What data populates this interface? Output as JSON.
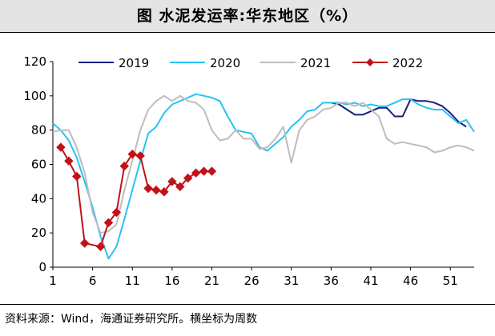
{
  "figure_title": "图    水泥发运率:华东地区（%）",
  "source": "资料来源：Wind，海通证券研究所。横坐标为周数",
  "chart_data": {
    "type": "line",
    "title": "水泥发运率:华东地区（%）",
    "xlabel": "",
    "ylabel": "",
    "xlim": [
      1,
      54
    ],
    "ylim": [
      0,
      120
    ],
    "x_ticks": [
      1,
      6,
      11,
      16,
      21,
      26,
      31,
      36,
      41,
      46,
      51
    ],
    "y_ticks": [
      0,
      20,
      40,
      60,
      80,
      100,
      120
    ],
    "legend_position": "top",
    "series": [
      {
        "name": "2019",
        "color": "#1c1c80",
        "markers": false,
        "points": [
          [
            36,
            96
          ],
          [
            37,
            95
          ],
          [
            38,
            92
          ],
          [
            39,
            89
          ],
          [
            40,
            89
          ],
          [
            41,
            91
          ],
          [
            42,
            93
          ],
          [
            43,
            93
          ],
          [
            44,
            88
          ],
          [
            45,
            88
          ],
          [
            46,
            98
          ],
          [
            47,
            97
          ],
          [
            48,
            97
          ],
          [
            49,
            96
          ],
          [
            50,
            94
          ],
          [
            51,
            90
          ],
          [
            52,
            85
          ],
          [
            53,
            82
          ]
        ]
      },
      {
        "name": "2020",
        "color": "#24c4f4",
        "markers": false,
        "points": [
          [
            1,
            84
          ],
          [
            2,
            80
          ],
          [
            3,
            74
          ],
          [
            4,
            64
          ],
          [
            5,
            50
          ],
          [
            6,
            35
          ],
          [
            7,
            18
          ],
          [
            8,
            5
          ],
          [
            9,
            12
          ],
          [
            10,
            28
          ],
          [
            11,
            45
          ],
          [
            12,
            62
          ],
          [
            13,
            78
          ],
          [
            14,
            82
          ],
          [
            15,
            90
          ],
          [
            16,
            95
          ],
          [
            17,
            97
          ],
          [
            18,
            99
          ],
          [
            19,
            101
          ],
          [
            20,
            100
          ],
          [
            21,
            99
          ],
          [
            22,
            97
          ],
          [
            23,
            88
          ],
          [
            24,
            80
          ],
          [
            25,
            79
          ],
          [
            26,
            78
          ],
          [
            27,
            70
          ],
          [
            28,
            68
          ],
          [
            29,
            72
          ],
          [
            30,
            76
          ],
          [
            31,
            82
          ],
          [
            32,
            86
          ],
          [
            33,
            91
          ],
          [
            34,
            92
          ],
          [
            35,
            96
          ],
          [
            36,
            96
          ],
          [
            37,
            96
          ],
          [
            38,
            95
          ],
          [
            39,
            96
          ],
          [
            40,
            94
          ],
          [
            41,
            95
          ],
          [
            42,
            94
          ],
          [
            43,
            94
          ],
          [
            44,
            96
          ],
          [
            45,
            98
          ],
          [
            46,
            98
          ],
          [
            47,
            95
          ],
          [
            48,
            93
          ],
          [
            49,
            92
          ],
          [
            50,
            92
          ],
          [
            51,
            88
          ],
          [
            52,
            84
          ],
          [
            53,
            86
          ],
          [
            54,
            79
          ]
        ]
      },
      {
        "name": "2021",
        "color": "#bdbdbd",
        "markers": false,
        "points": [
          [
            1,
            79
          ],
          [
            2,
            80
          ],
          [
            3,
            80
          ],
          [
            4,
            70
          ],
          [
            5,
            55
          ],
          [
            6,
            32
          ],
          [
            7,
            20
          ],
          [
            8,
            21
          ],
          [
            9,
            25
          ],
          [
            10,
            45
          ],
          [
            11,
            62
          ],
          [
            12,
            80
          ],
          [
            13,
            92
          ],
          [
            14,
            97
          ],
          [
            15,
            100
          ],
          [
            16,
            97
          ],
          [
            17,
            100
          ],
          [
            18,
            97
          ],
          [
            19,
            96
          ],
          [
            20,
            92
          ],
          [
            21,
            80
          ],
          [
            22,
            74
          ],
          [
            23,
            75
          ],
          [
            24,
            80
          ],
          [
            25,
            75
          ],
          [
            26,
            75
          ],
          [
            27,
            69
          ],
          [
            28,
            70
          ],
          [
            29,
            75
          ],
          [
            30,
            82
          ],
          [
            31,
            61
          ],
          [
            32,
            80
          ],
          [
            33,
            86
          ],
          [
            34,
            88
          ],
          [
            35,
            92
          ],
          [
            36,
            93
          ],
          [
            37,
            96
          ],
          [
            38,
            96
          ],
          [
            39,
            94
          ],
          [
            40,
            96
          ],
          [
            41,
            92
          ],
          [
            42,
            88
          ],
          [
            43,
            75
          ],
          [
            44,
            72
          ],
          [
            45,
            73
          ],
          [
            46,
            72
          ],
          [
            47,
            71
          ],
          [
            48,
            70
          ],
          [
            49,
            67
          ],
          [
            50,
            68
          ],
          [
            51,
            70
          ],
          [
            52,
            71
          ],
          [
            53,
            70
          ],
          [
            54,
            68
          ]
        ]
      },
      {
        "name": "2022",
        "color": "#c0121a",
        "markers": true,
        "points": [
          [
            2,
            70
          ],
          [
            3,
            62
          ],
          [
            4,
            53
          ],
          [
            5,
            14
          ],
          [
            7,
            12
          ],
          [
            8,
            26
          ],
          [
            9,
            32
          ],
          [
            10,
            59
          ],
          [
            11,
            66
          ],
          [
            12,
            65
          ],
          [
            13,
            46
          ],
          [
            14,
            45
          ],
          [
            15,
            44
          ],
          [
            16,
            50
          ],
          [
            17,
            47
          ],
          [
            18,
            52
          ],
          [
            19,
            55
          ],
          [
            20,
            56
          ],
          [
            21,
            56
          ]
        ]
      }
    ]
  }
}
